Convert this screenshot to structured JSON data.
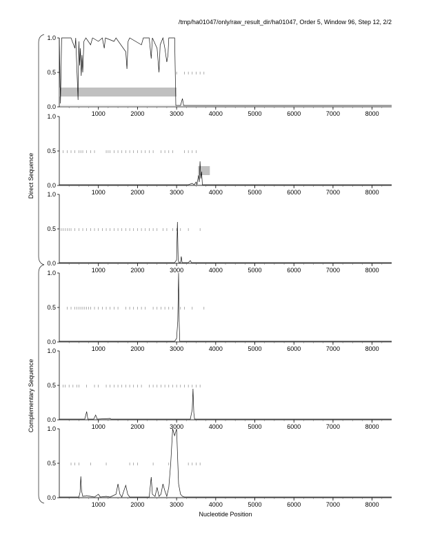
{
  "page_title": "/tmp/ha01047/only/raw_result_dir/ha01047, Order 5, Window 96, Step 12, 2/2",
  "groups": [
    {
      "label": "Direct Sequence"
    },
    {
      "label": "Complementary Sequence"
    }
  ],
  "chart_data": {
    "type": "line",
    "xlabel": "Nucleotide Position",
    "xlim": [
      0,
      8500
    ],
    "ylim": [
      0,
      1
    ],
    "x_ticks": [
      1000,
      2000,
      3000,
      4000,
      5000,
      6000,
      7000,
      8000
    ],
    "x_tick_labels": [
      "1000",
      "2000",
      "3000",
      "4000",
      "5000",
      "6000",
      "7000",
      "8000"
    ],
    "y_ticks": [
      0,
      0.5,
      1
    ],
    "y_tick_labels": [
      "0.0",
      "0.5",
      "1.0"
    ],
    "panels": [
      {
        "group": "Direct Sequence",
        "baseline": 0.02,
        "series": [
          [
            0,
            1.0
          ],
          [
            30,
            0.05
          ],
          [
            60,
            1.0
          ],
          [
            300,
            1.0
          ],
          [
            400,
            0.85
          ],
          [
            420,
            1.0
          ],
          [
            450,
            0.55
          ],
          [
            480,
            0.1
          ],
          [
            500,
            0.95
          ],
          [
            520,
            0.6
          ],
          [
            540,
            0.85
          ],
          [
            560,
            0.45
          ],
          [
            580,
            0.75
          ],
          [
            600,
            0.5
          ],
          [
            630,
            0.95
          ],
          [
            680,
            1.0
          ],
          [
            800,
            0.9
          ],
          [
            850,
            1.0
          ],
          [
            1000,
            0.95
          ],
          [
            1100,
            1.0
          ],
          [
            1150,
            0.85
          ],
          [
            1180,
            1.0
          ],
          [
            1400,
            0.95
          ],
          [
            1450,
            1.0
          ],
          [
            1700,
            0.8
          ],
          [
            1730,
            0.55
          ],
          [
            1760,
            0.95
          ],
          [
            1800,
            1.0
          ],
          [
            2100,
            0.9
          ],
          [
            2150,
            1.0
          ],
          [
            2300,
            1.0
          ],
          [
            2350,
            0.7
          ],
          [
            2380,
            1.0
          ],
          [
            2500,
            0.85
          ],
          [
            2550,
            0.5
          ],
          [
            2580,
            0.9
          ],
          [
            2650,
            1.0
          ],
          [
            2700,
            0.85
          ],
          [
            2750,
            0.65
          ],
          [
            2780,
            0.75
          ],
          [
            2800,
            1.0
          ],
          [
            2950,
            1.0
          ],
          [
            2980,
            0.02
          ],
          [
            3050,
            0.02
          ],
          [
            3100,
            0.02
          ],
          [
            3150,
            0.12
          ],
          [
            3180,
            0.02
          ],
          [
            3400,
            0.02
          ],
          [
            8500,
            0.02
          ]
        ],
        "marks_y": 0.49,
        "marks_x": [
          3000,
          3200,
          3300,
          3400,
          3500,
          3600,
          3700
        ],
        "highlight": {
          "x_range": [
            0,
            3000
          ],
          "y_range": [
            0.15,
            0.28
          ]
        }
      },
      {
        "group": "Direct Sequence",
        "baseline": 0.01,
        "series": [
          [
            0,
            0.01
          ],
          [
            3300,
            0.01
          ],
          [
            3400,
            0.03
          ],
          [
            3450,
            0.01
          ],
          [
            3500,
            0.05
          ],
          [
            3520,
            0.01
          ],
          [
            3560,
            0.15
          ],
          [
            3580,
            0.05
          ],
          [
            3600,
            0.35
          ],
          [
            3620,
            0.1
          ],
          [
            3640,
            0.2
          ],
          [
            3660,
            0.01
          ],
          [
            3700,
            0.01
          ],
          [
            8500,
            0.01
          ]
        ],
        "marks_y": 0.49,
        "marks_x": [
          100,
          200,
          300,
          400,
          500,
          550,
          600,
          700,
          800,
          900,
          1200,
          1250,
          1300,
          1400,
          1500,
          1600,
          1700,
          1800,
          1900,
          2000,
          2100,
          2200,
          2300,
          2400,
          2600,
          2700,
          2800,
          2900,
          3200,
          3300,
          3400,
          3500
        ],
        "highlight": {
          "x_range": [
            3550,
            3850
          ],
          "y_range": [
            0.15,
            0.28
          ]
        }
      },
      {
        "group": "Direct Sequence",
        "baseline": 0.01,
        "series": [
          [
            0,
            0.01
          ],
          [
            2950,
            0.01
          ],
          [
            3000,
            0.05
          ],
          [
            3020,
            0.6
          ],
          [
            3040,
            0.05
          ],
          [
            3060,
            0.01
          ],
          [
            3100,
            0.01
          ],
          [
            3120,
            0.1
          ],
          [
            3140,
            0.01
          ],
          [
            3300,
            0.01
          ],
          [
            3350,
            0.04
          ],
          [
            3380,
            0.01
          ],
          [
            8500,
            0.01
          ]
        ],
        "marks_y": 0.49,
        "marks_x": [
          50,
          100,
          150,
          200,
          250,
          300,
          400,
          500,
          600,
          700,
          800,
          900,
          1000,
          1100,
          1200,
          1300,
          1400,
          1500,
          1600,
          1700,
          1800,
          1900,
          2000,
          2100,
          2200,
          2300,
          2400,
          2500,
          2650,
          2750,
          2900,
          3000,
          3100,
          3300,
          3600
        ],
        "highlight": null
      },
      {
        "group": "Complementary Sequence",
        "baseline": 0.01,
        "series": [
          [
            0,
            0.01
          ],
          [
            2950,
            0.01
          ],
          [
            3000,
            0.05
          ],
          [
            3030,
            0.3
          ],
          [
            3050,
            1.0
          ],
          [
            3065,
            0.3
          ],
          [
            3080,
            0.01
          ],
          [
            8500,
            0.01
          ]
        ],
        "marks_y": 0.49,
        "marks_x": [
          200,
          300,
          400,
          450,
          500,
          550,
          600,
          650,
          700,
          750,
          800,
          900,
          1000,
          1100,
          1200,
          1300,
          1400,
          1500,
          1700,
          1800,
          1900,
          2000,
          2100,
          2200,
          2400,
          2500,
          2600,
          2700,
          2800,
          2900,
          3100,
          3200,
          3400,
          3700
        ],
        "highlight": null
      },
      {
        "group": "Complementary Sequence",
        "baseline": 0.01,
        "series": [
          [
            0,
            0.01
          ],
          [
            650,
            0.01
          ],
          [
            700,
            0.12
          ],
          [
            730,
            0.01
          ],
          [
            880,
            0.01
          ],
          [
            930,
            0.07
          ],
          [
            970,
            0.01
          ],
          [
            1300,
            0.02
          ],
          [
            1320,
            0.01
          ],
          [
            3350,
            0.01
          ],
          [
            3400,
            0.15
          ],
          [
            3420,
            0.45
          ],
          [
            3440,
            0.1
          ],
          [
            3460,
            0.01
          ],
          [
            8500,
            0.01
          ]
        ],
        "marks_y": 0.49,
        "marks_x": [
          100,
          150,
          250,
          350,
          450,
          500,
          700,
          900,
          1000,
          1200,
          1300,
          1400,
          1500,
          1600,
          1700,
          1800,
          1900,
          2000,
          2100,
          2300,
          2400,
          2500,
          2600,
          2700,
          2800,
          2900,
          3000,
          3100,
          3200,
          3300,
          3400,
          3500,
          3600
        ],
        "highlight": null
      },
      {
        "group": "Complementary Sequence",
        "baseline": 0.01,
        "series": [
          [
            0,
            0.01
          ],
          [
            500,
            0.01
          ],
          [
            530,
            0.08
          ],
          [
            550,
            0.31
          ],
          [
            570,
            0.1
          ],
          [
            600,
            0.02
          ],
          [
            700,
            0.03
          ],
          [
            900,
            0.01
          ],
          [
            1000,
            0.05
          ],
          [
            1050,
            0.01
          ],
          [
            1200,
            0.02
          ],
          [
            1300,
            0.01
          ],
          [
            1450,
            0.05
          ],
          [
            1500,
            0.2
          ],
          [
            1550,
            0.05
          ],
          [
            1600,
            0.01
          ],
          [
            1650,
            0.1
          ],
          [
            1700,
            0.18
          ],
          [
            1750,
            0.05
          ],
          [
            1800,
            0.01
          ],
          [
            2300,
            0.01
          ],
          [
            2350,
            0.3
          ],
          [
            2380,
            0.05
          ],
          [
            2450,
            0.02
          ],
          [
            2500,
            0.15
          ],
          [
            2550,
            0.02
          ],
          [
            2600,
            0.05
          ],
          [
            2650,
            0.2
          ],
          [
            2700,
            0.1
          ],
          [
            2750,
            0.02
          ],
          [
            2800,
            0.15
          ],
          [
            2850,
            0.5
          ],
          [
            2900,
            1.0
          ],
          [
            2950,
            0.9
          ],
          [
            3000,
            1.0
          ],
          [
            3050,
            0.2
          ],
          [
            3100,
            0.05
          ],
          [
            3150,
            0.02
          ],
          [
            3200,
            0.01
          ],
          [
            8500,
            0.01
          ]
        ],
        "marks_y": 0.49,
        "marks_x": [
          300,
          400,
          500,
          800,
          1200,
          1800,
          1900,
          2000,
          2400,
          2800,
          3300,
          3400,
          3500,
          3600
        ],
        "highlight": null
      }
    ]
  }
}
